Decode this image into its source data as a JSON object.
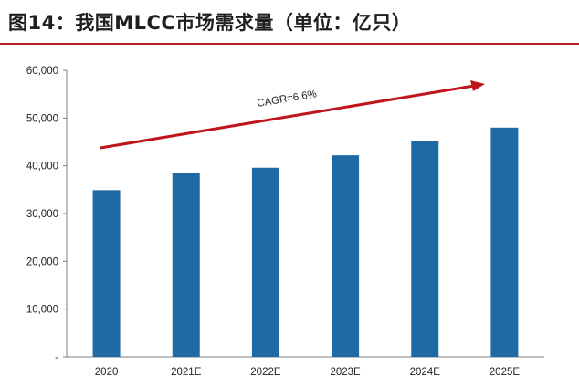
{
  "figure": {
    "title": "图14：我国MLCC市场需求量（单位：亿只）"
  },
  "colors": {
    "bar": "#1f6aa5",
    "trend_arrow": "#c0141c",
    "title_rule": "#b41e23",
    "axis": "#7f7f7f"
  },
  "chart_data": {
    "type": "bar",
    "categories": [
      "2020",
      "2021E",
      "2022E",
      "2023E",
      "2024E",
      "2025E"
    ],
    "values": [
      34900,
      38600,
      39600,
      42200,
      45100,
      48000
    ],
    "ylim": [
      0,
      60000
    ],
    "yticks": [
      "-",
      "10,000",
      "20,000",
      "30,000",
      "40,000",
      "50,000",
      "60,000"
    ],
    "ytick_values": [
      0,
      10000,
      20000,
      30000,
      40000,
      50000,
      60000
    ],
    "xlabel": "",
    "ylabel": "",
    "grid": false,
    "annotations": [
      {
        "text": "CAGR=6.6%",
        "type": "trend-arrow"
      }
    ]
  }
}
